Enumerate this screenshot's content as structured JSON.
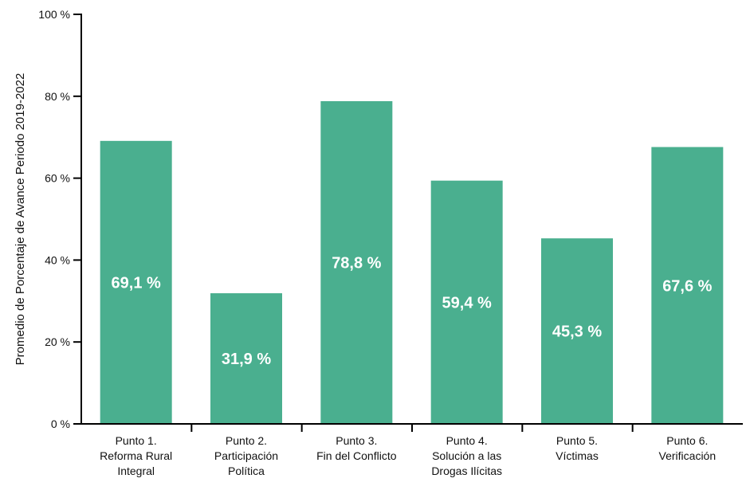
{
  "chart_data": {
    "type": "bar",
    "title": "",
    "xlabel": "",
    "ylabel": "Promedio de Porcentaje de Avance Periodo 2019-2022",
    "ylim": [
      0,
      100
    ],
    "yticks": [
      0,
      20,
      40,
      60,
      80,
      100
    ],
    "ytick_labels": [
      "0 %",
      "20 %",
      "40 %",
      "60 %",
      "80 %",
      "100 %"
    ],
    "bar_color": "#4aaf8f",
    "grid": false,
    "legend": "none",
    "categories": [
      [
        "Punto 1.",
        "Reforma Rural",
        "Integral"
      ],
      [
        "Punto 2.",
        "Participación",
        "Política"
      ],
      [
        "Punto 3.",
        "Fin del Conflicto"
      ],
      [
        "Punto 4.",
        "Solución a las",
        "Drogas Ilícitas"
      ],
      [
        "Punto 5.",
        "Víctimas"
      ],
      [
        "Punto 6.",
        "Verificación"
      ]
    ],
    "values": [
      69.1,
      31.9,
      78.8,
      59.4,
      45.3,
      67.6
    ],
    "data_labels": [
      "69,1 %",
      "31,9 %",
      "78,8 %",
      "59,4 %",
      "45,3 %",
      "67,6 %"
    ]
  }
}
